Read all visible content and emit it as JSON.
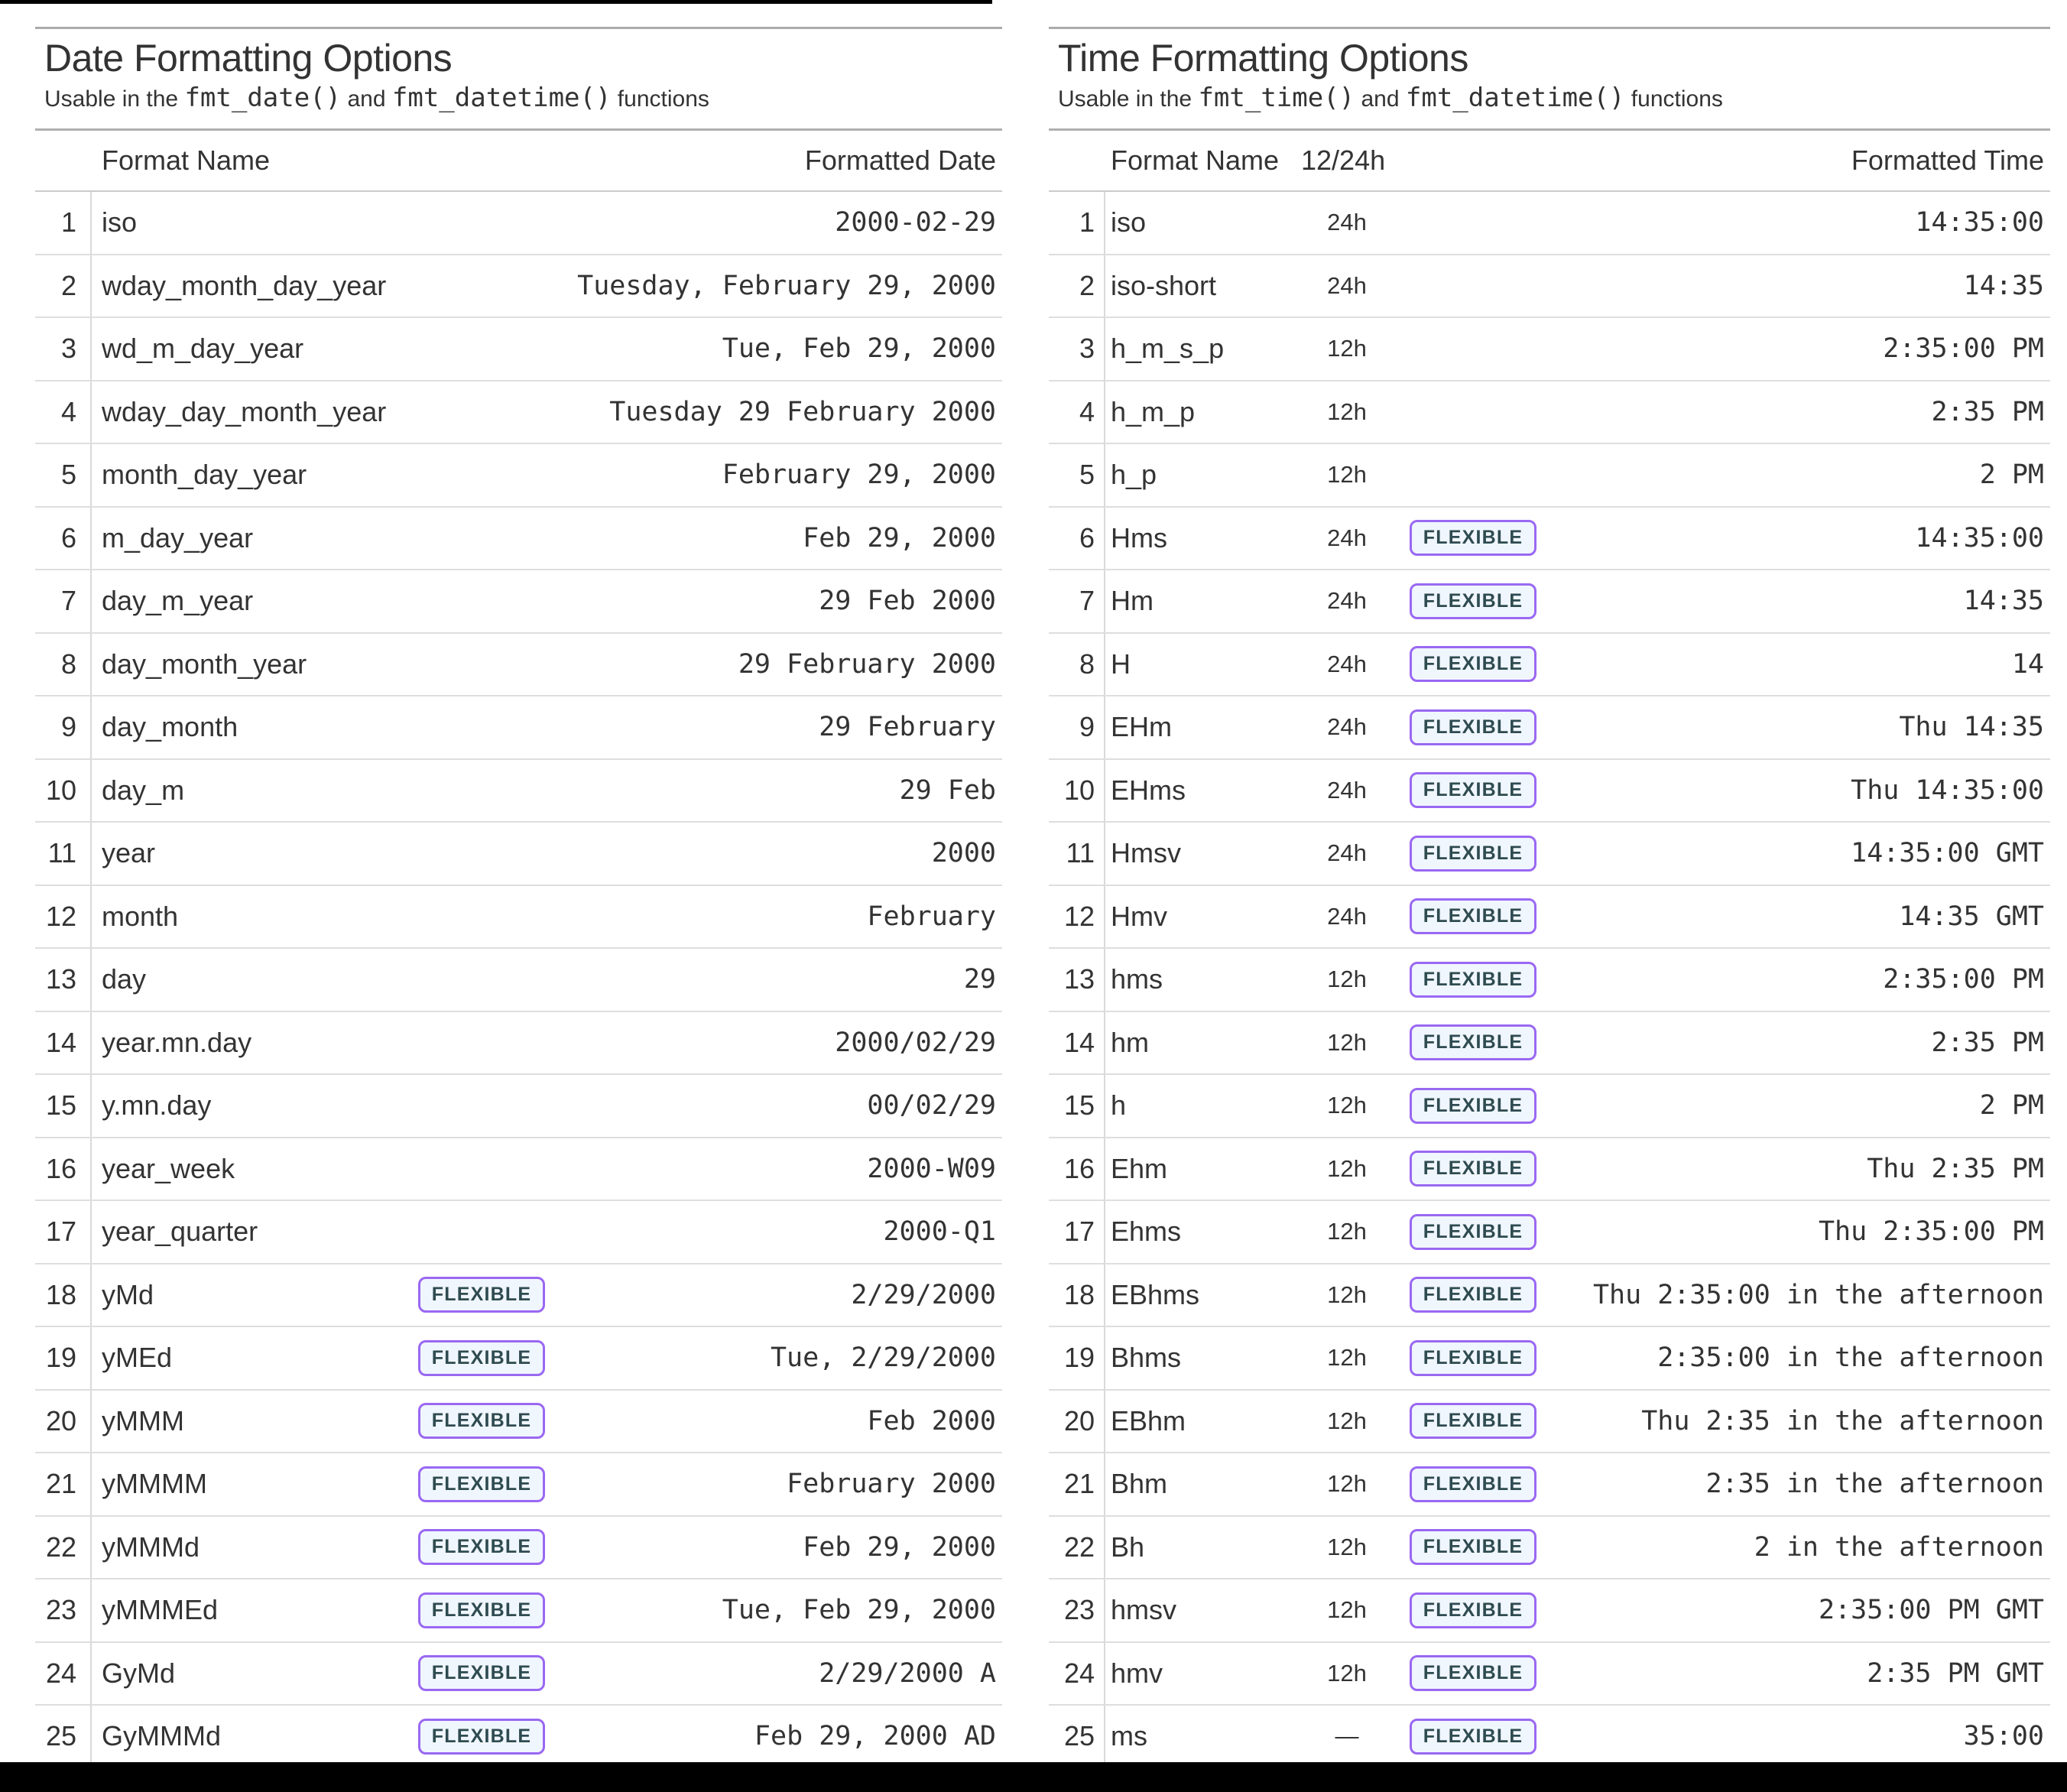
{
  "page": {
    "background": "#FFFFFF",
    "letterbox_color": "#000000",
    "text_color": "#333333"
  },
  "badge": {
    "label": "FLEXIBLE",
    "border_color": "#9A68F2",
    "background": "#F0F6FD",
    "text_color": "#2E4B50"
  },
  "date_table": {
    "title": "Date Formatting Options",
    "subtitle_parts": [
      {
        "text": "Usable in the ",
        "mono": false
      },
      {
        "text": "fmt_date()",
        "mono": true
      },
      {
        "text": " and ",
        "mono": false
      },
      {
        "text": "fmt_datetime()",
        "mono": true
      },
      {
        "text": " functions",
        "mono": false
      }
    ],
    "columns": {
      "name": "Format Name",
      "value": "Formatted Date"
    },
    "rows": [
      {
        "n": 1,
        "name": "iso",
        "flexible": false,
        "value": "2000-02-29"
      },
      {
        "n": 2,
        "name": "wday_month_day_year",
        "flexible": false,
        "value": "Tuesday, February 29, 2000"
      },
      {
        "n": 3,
        "name": "wd_m_day_year",
        "flexible": false,
        "value": "Tue, Feb 29, 2000"
      },
      {
        "n": 4,
        "name": "wday_day_month_year",
        "flexible": false,
        "value": "Tuesday 29 February 2000"
      },
      {
        "n": 5,
        "name": "month_day_year",
        "flexible": false,
        "value": "February 29, 2000"
      },
      {
        "n": 6,
        "name": "m_day_year",
        "flexible": false,
        "value": "Feb 29, 2000"
      },
      {
        "n": 7,
        "name": "day_m_year",
        "flexible": false,
        "value": "29 Feb 2000"
      },
      {
        "n": 8,
        "name": "day_month_year",
        "flexible": false,
        "value": "29 February 2000"
      },
      {
        "n": 9,
        "name": "day_month",
        "flexible": false,
        "value": "29 February"
      },
      {
        "n": 10,
        "name": "day_m",
        "flexible": false,
        "value": "29 Feb"
      },
      {
        "n": 11,
        "name": "year",
        "flexible": false,
        "value": "2000"
      },
      {
        "n": 12,
        "name": "month",
        "flexible": false,
        "value": "February"
      },
      {
        "n": 13,
        "name": "day",
        "flexible": false,
        "value": "29"
      },
      {
        "n": 14,
        "name": "year.mn.day",
        "flexible": false,
        "value": "2000/02/29"
      },
      {
        "n": 15,
        "name": "y.mn.day",
        "flexible": false,
        "value": "00/02/29"
      },
      {
        "n": 16,
        "name": "year_week",
        "flexible": false,
        "value": "2000-W09"
      },
      {
        "n": 17,
        "name": "year_quarter",
        "flexible": false,
        "value": "2000-Q1"
      },
      {
        "n": 18,
        "name": "yMd",
        "flexible": true,
        "value": "2/29/2000"
      },
      {
        "n": 19,
        "name": "yMEd",
        "flexible": true,
        "value": "Tue, 2/29/2000"
      },
      {
        "n": 20,
        "name": "yMMM",
        "flexible": true,
        "value": "Feb 2000"
      },
      {
        "n": 21,
        "name": "yMMMM",
        "flexible": true,
        "value": "February 2000"
      },
      {
        "n": 22,
        "name": "yMMMd",
        "flexible": true,
        "value": "Feb 29, 2000"
      },
      {
        "n": 23,
        "name": "yMMMEd",
        "flexible": true,
        "value": "Tue, Feb 29, 2000"
      },
      {
        "n": 24,
        "name": "GyMd",
        "flexible": true,
        "value": "2/29/2000 A"
      },
      {
        "n": 25,
        "name": "GyMMMd",
        "flexible": true,
        "value": "Feb 29, 2000 AD"
      }
    ]
  },
  "time_table": {
    "title": "Time Formatting Options",
    "subtitle_parts": [
      {
        "text": "Usable in the ",
        "mono": false
      },
      {
        "text": "fmt_time()",
        "mono": true
      },
      {
        "text": " and ",
        "mono": false
      },
      {
        "text": "fmt_datetime()",
        "mono": true
      },
      {
        "text": " functions",
        "mono": false
      }
    ],
    "columns": {
      "name": "Format Name",
      "hours": "12/24h",
      "value": "Formatted Time"
    },
    "rows": [
      {
        "n": 1,
        "name": "iso",
        "hours": "24h",
        "flexible": false,
        "value": "14:35:00"
      },
      {
        "n": 2,
        "name": "iso-short",
        "hours": "24h",
        "flexible": false,
        "value": "14:35"
      },
      {
        "n": 3,
        "name": "h_m_s_p",
        "hours": "12h",
        "flexible": false,
        "value": "2:35:00 PM"
      },
      {
        "n": 4,
        "name": "h_m_p",
        "hours": "12h",
        "flexible": false,
        "value": "2:35 PM"
      },
      {
        "n": 5,
        "name": "h_p",
        "hours": "12h",
        "flexible": false,
        "value": "2 PM"
      },
      {
        "n": 6,
        "name": "Hms",
        "hours": "24h",
        "flexible": true,
        "value": "14:35:00"
      },
      {
        "n": 7,
        "name": "Hm",
        "hours": "24h",
        "flexible": true,
        "value": "14:35"
      },
      {
        "n": 8,
        "name": "H",
        "hours": "24h",
        "flexible": true,
        "value": "14"
      },
      {
        "n": 9,
        "name": "EHm",
        "hours": "24h",
        "flexible": true,
        "value": "Thu 14:35"
      },
      {
        "n": 10,
        "name": "EHms",
        "hours": "24h",
        "flexible": true,
        "value": "Thu 14:35:00"
      },
      {
        "n": 11,
        "name": "Hmsv",
        "hours": "24h",
        "flexible": true,
        "value": "14:35:00 GMT"
      },
      {
        "n": 12,
        "name": "Hmv",
        "hours": "24h",
        "flexible": true,
        "value": "14:35 GMT"
      },
      {
        "n": 13,
        "name": "hms",
        "hours": "12h",
        "flexible": true,
        "value": "2:35:00 PM"
      },
      {
        "n": 14,
        "name": "hm",
        "hours": "12h",
        "flexible": true,
        "value": "2:35 PM"
      },
      {
        "n": 15,
        "name": "h",
        "hours": "12h",
        "flexible": true,
        "value": "2 PM"
      },
      {
        "n": 16,
        "name": "Ehm",
        "hours": "12h",
        "flexible": true,
        "value": "Thu 2:35 PM"
      },
      {
        "n": 17,
        "name": "Ehms",
        "hours": "12h",
        "flexible": true,
        "value": "Thu 2:35:00 PM"
      },
      {
        "n": 18,
        "name": "EBhms",
        "hours": "12h",
        "flexible": true,
        "value": "Thu 2:35:00 in the afternoon"
      },
      {
        "n": 19,
        "name": "Bhms",
        "hours": "12h",
        "flexible": true,
        "value": "2:35:00 in the afternoon"
      },
      {
        "n": 20,
        "name": "EBhm",
        "hours": "12h",
        "flexible": true,
        "value": "Thu 2:35 in the afternoon"
      },
      {
        "n": 21,
        "name": "Bhm",
        "hours": "12h",
        "flexible": true,
        "value": "2:35 in the afternoon"
      },
      {
        "n": 22,
        "name": "Bh",
        "hours": "12h",
        "flexible": true,
        "value": "2 in the afternoon"
      },
      {
        "n": 23,
        "name": "hmsv",
        "hours": "12h",
        "flexible": true,
        "value": "2:35:00 PM GMT"
      },
      {
        "n": 24,
        "name": "hmv",
        "hours": "12h",
        "flexible": true,
        "value": "2:35 PM GMT"
      },
      {
        "n": 25,
        "name": "ms",
        "hours": "—",
        "flexible": true,
        "value": "35:00"
      }
    ]
  }
}
